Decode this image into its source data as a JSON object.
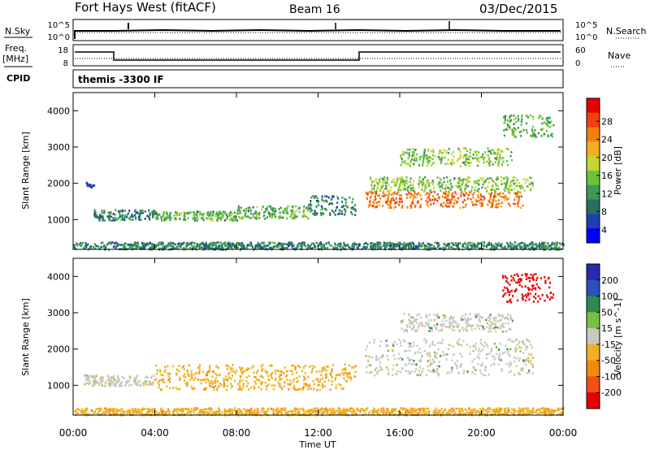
{
  "header": {
    "station": "Fort Hays West (fitACF)",
    "beam": "Beam 16",
    "date": "03/Dec/2015"
  },
  "panels": {
    "nsky_label": "N.Sky",
    "nsky_ticks": [
      "10^5",
      "10^0"
    ],
    "nsearch_label": "N.Search",
    "nsearch_ticks": [
      "10^5",
      "10^0"
    ],
    "freq_label": "Freq.",
    "freq_unit": "[MHz]",
    "freq_ticks": [
      "18",
      "8"
    ],
    "nave_label": "Nave",
    "nave_ticks": [
      "60",
      "0"
    ],
    "cpid_label": "CPID",
    "cpid_value": "themis -3300 IF"
  },
  "colors": {
    "power": [
      "#0000ff",
      "#1f3fb0",
      "#2a6e62",
      "#3c9a56",
      "#6ec23c",
      "#c8d432",
      "#f0b020",
      "#f37e10",
      "#f04010",
      "#e60000"
    ],
    "velocity": [
      "#2a2ab0",
      "#2a52b8",
      "#2f8a50",
      "#78c040",
      "#c8c8c0",
      "#f0b020",
      "#f38a10",
      "#f05010",
      "#e60000"
    ]
  },
  "chart_data": [
    {
      "type": "heatmap",
      "name": "power",
      "ylabel": "Slant Range [km]",
      "xlim": [
        0,
        24
      ],
      "ylim": [
        180,
        4500
      ],
      "yticks": [
        "1000",
        "2000",
        "3000",
        "4000"
      ],
      "colorbar_label": "Power [dB]",
      "colorbar_ticks": [
        "4",
        "8",
        "12",
        "16",
        "20",
        "24",
        "28"
      ],
      "scatter_regions": [
        {
          "t0": 0.6,
          "t1": 1.0,
          "r0": 1900,
          "r1": 2050,
          "value": 4
        },
        {
          "t0": 1.0,
          "t1": 4.0,
          "r0": 1000,
          "r1": 1300,
          "value": 8
        },
        {
          "t0": 4.0,
          "t1": 8.0,
          "r0": 1000,
          "r1": 1250,
          "value": 12
        },
        {
          "t0": 8.0,
          "t1": 11.5,
          "r0": 1050,
          "r1": 1400,
          "value": 12
        },
        {
          "t0": 11.5,
          "t1": 13.8,
          "r0": 1150,
          "r1": 1700,
          "value": 8
        },
        {
          "t0": 14.3,
          "t1": 22.0,
          "r0": 1350,
          "r1": 1800,
          "value": 24
        },
        {
          "t0": 14.5,
          "t1": 22.5,
          "r0": 1800,
          "r1": 2200,
          "value": 14
        },
        {
          "t0": 16.0,
          "t1": 21.5,
          "r0": 2500,
          "r1": 3000,
          "value": 14
        },
        {
          "t0": 21.0,
          "t1": 23.5,
          "r0": 3300,
          "r1": 3900,
          "value": 12
        },
        {
          "t0": 0.0,
          "t1": 24.0,
          "r0": 200,
          "r1": 400,
          "value": 8
        }
      ]
    },
    {
      "type": "heatmap",
      "name": "velocity",
      "xlabel": "Time UT",
      "ylabel": "Slant Range [km]",
      "xlim": [
        0,
        24
      ],
      "ylim": [
        180,
        4500
      ],
      "xticks": [
        "00:00",
        "04:00",
        "08:00",
        "12:00",
        "16:00",
        "20:00",
        "00:00"
      ],
      "yticks": [
        "1000",
        "2000",
        "3000",
        "4000"
      ],
      "colorbar_label": "Velocity [m s^-1]",
      "colorbar_ticks": [
        "200",
        "100",
        "50",
        "15",
        "-15",
        "-50",
        "-100",
        "-200"
      ],
      "scatter_regions": [
        {
          "t0": 0.5,
          "t1": 4.0,
          "r0": 1000,
          "r1": 1300,
          "value": -15
        },
        {
          "t0": 4.0,
          "t1": 13.8,
          "r0": 900,
          "r1": 1600,
          "value": -50
        },
        {
          "t0": 14.3,
          "t1": 22.5,
          "r0": 1300,
          "r1": 2300,
          "value": 0
        },
        {
          "t0": 16.0,
          "t1": 21.5,
          "r0": 2500,
          "r1": 3000,
          "value": 0
        },
        {
          "t0": 21.0,
          "t1": 23.5,
          "r0": 3300,
          "r1": 4100,
          "value": -200
        },
        {
          "t0": 0.0,
          "t1": 24.0,
          "r0": 200,
          "r1": 400,
          "value": -50
        }
      ]
    }
  ]
}
